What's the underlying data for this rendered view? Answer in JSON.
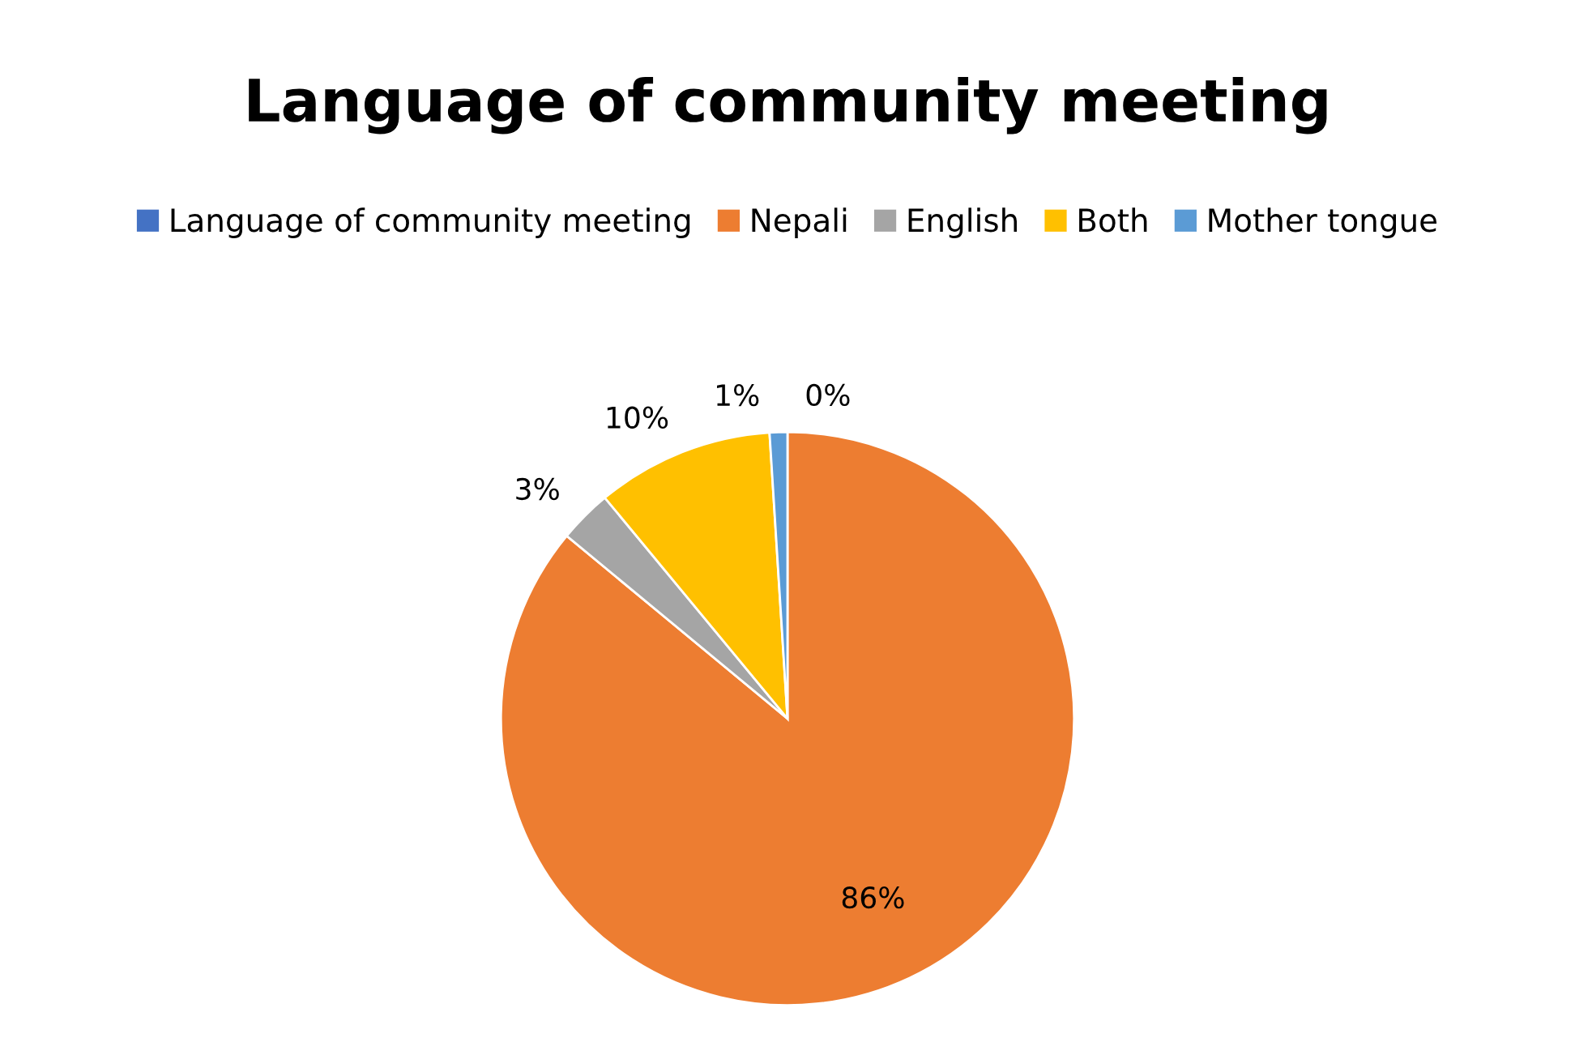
{
  "chart_data": {
    "type": "pie",
    "title": "Language of community meeting",
    "categories": [
      "Language of community meeting",
      "Nepali",
      "English",
      "Both",
      "Mother tongue"
    ],
    "values": [
      0,
      86,
      3,
      10,
      1
    ],
    "colors": [
      "#4472c4",
      "#ed7d31",
      "#a5a5a5",
      "#ffc000",
      "#5b9bd5"
    ],
    "value_labels": [
      "0%",
      "86%",
      "3%",
      "10%",
      "1%"
    ],
    "legend": "top"
  }
}
